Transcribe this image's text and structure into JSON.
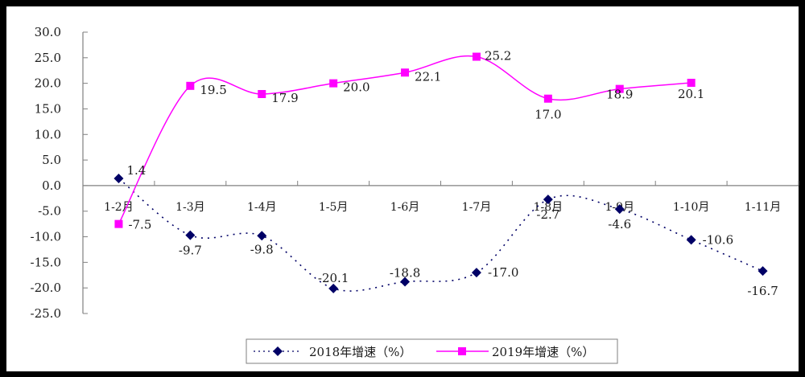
{
  "chart_data": {
    "type": "line",
    "title": "",
    "xlabel": "",
    "ylabel": "",
    "categories": [
      "1-2月",
      "1-3月",
      "1-4月",
      "1-5月",
      "1-6月",
      "1-7月",
      "1-8月",
      "1-9月",
      "1-10月",
      "1-11月"
    ],
    "ylim": [
      -25,
      30
    ],
    "yticks": [
      "30.0",
      "25.0",
      "20.0",
      "15.0",
      "10.0",
      "5.0",
      "0.0",
      "-5.0",
      "-10.0",
      "-15.0",
      "-20.0",
      "-25.0"
    ],
    "grid": false,
    "legend_position": "bottom",
    "series": [
      {
        "name": "2018年增速（%）",
        "color": "#000066",
        "marker": "diamond",
        "line_style": "dotted",
        "values": [
          1.4,
          -9.7,
          -9.8,
          -20.1,
          -18.8,
          -17.0,
          -2.7,
          -4.6,
          -10.6,
          -16.7
        ],
        "labels": [
          "1.4",
          "-9.7",
          "-9.8",
          "-20.1",
          "-18.8",
          "-17.0",
          "-2.7",
          "-4.6",
          "-10.6",
          "-16.7"
        ]
      },
      {
        "name": "2019年增速（%）",
        "color": "#FF00FF",
        "marker": "square",
        "line_style": "solid",
        "values": [
          -7.5,
          19.5,
          17.9,
          20.0,
          22.1,
          25.2,
          17.0,
          18.9,
          20.1,
          null
        ],
        "labels": [
          "-7.5",
          "19.5",
          "17.9",
          "20.0",
          "22.1",
          "25.2",
          "17.0",
          "18.9",
          "20.1",
          ""
        ]
      }
    ]
  },
  "legend": {
    "items": [
      "2018年增速（%）",
      "2019年增速（%）"
    ]
  }
}
